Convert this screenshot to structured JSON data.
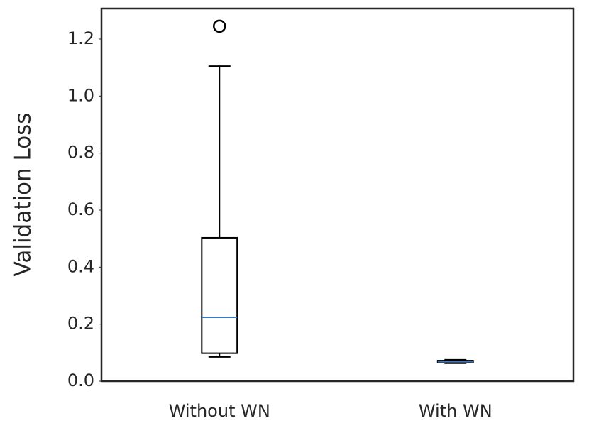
{
  "chart_data": {
    "type": "box",
    "ylabel": "Validation Loss",
    "categories": [
      "Without WN",
      "With WN"
    ],
    "boxes": [
      {
        "whislo": 0.085,
        "q1": 0.098,
        "med": 0.224,
        "q3": 0.503,
        "whishi": 1.105,
        "fliers": [
          1.245
        ]
      },
      {
        "whislo": 0.063,
        "q1": 0.065,
        "med": 0.068,
        "q3": 0.072,
        "whishi": 0.075,
        "fliers": []
      }
    ],
    "color": "#000000",
    "median_color": "#3a78c3",
    "ylim": [
      0,
      1.307
    ],
    "yticks": [
      {
        "value": 0,
        "label": "0.0"
      },
      0.2,
      0.4,
      0.6,
      0.8,
      {
        "value": 1,
        "label": "1.0"
      },
      1.2
    ],
    "grid": false
  }
}
